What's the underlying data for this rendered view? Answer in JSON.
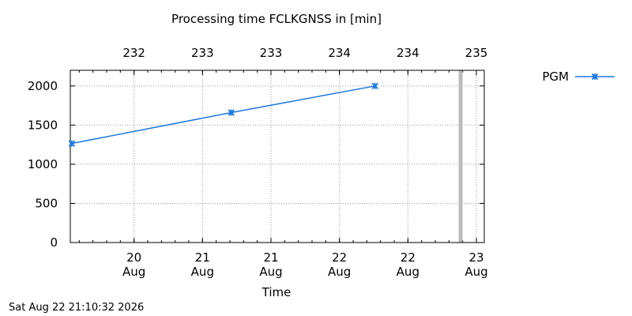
{
  "chart_data": {
    "type": "line",
    "title": "Processing time FCLKGNSS in [min]",
    "xlabel": "Time",
    "ylabel": "",
    "xlim": [
      0,
      6.0
    ],
    "ylim": [
      0,
      2200
    ],
    "yticks": [
      0,
      500,
      1000,
      1500,
      2000
    ],
    "bottom_ticks": [
      {
        "x": 1.0,
        "line1": "20",
        "line2": "Aug"
      },
      {
        "x": 2.0,
        "line1": "21",
        "line2": "Aug"
      },
      {
        "x": 3.0,
        "line1": "21",
        "line2": "Aug"
      },
      {
        "x": 4.0,
        "line1": "22",
        "line2": "Aug"
      },
      {
        "x": 5.0,
        "line1": "22",
        "line2": "Aug"
      },
      {
        "x": 6.0,
        "line1": "23",
        "line2": "Aug"
      }
    ],
    "top_ticks": [
      {
        "x": 1.0,
        "label": "232"
      },
      {
        "x": 2.0,
        "label": "233"
      },
      {
        "x": 3.0,
        "label": "233"
      },
      {
        "x": 4.0,
        "label": "234"
      },
      {
        "x": 5.0,
        "label": "234"
      },
      {
        "x": 6.0,
        "label": "235"
      }
    ],
    "series": [
      {
        "name": "PGM",
        "color": "#1e78dc",
        "marker": "x",
        "x": [
          0.09,
          2.42,
          4.52
        ],
        "y": [
          1265,
          1660,
          2000
        ]
      }
    ],
    "now_marker_x": 5.77,
    "now_marker_color": "#bbbbbb",
    "grid": true,
    "legend_position": "top-right"
  },
  "footer_timestamp": "Sat Aug 22 21:10:32 2026"
}
